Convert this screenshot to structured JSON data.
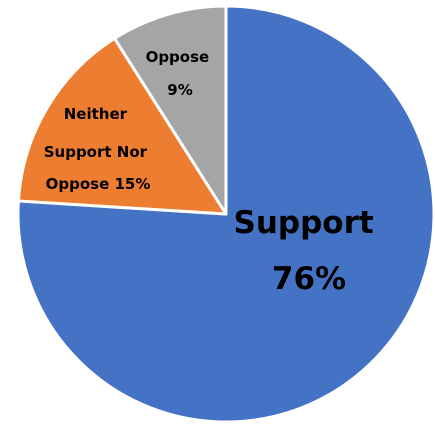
{
  "chart_data": {
    "type": "pie",
    "title": "",
    "start_angle_deg": 0,
    "direction": "clockwise",
    "legend": "none",
    "slices": [
      {
        "name_lines": [
          "Support",
          "76%"
        ],
        "value": 76,
        "color": "#4472C4"
      },
      {
        "name_lines": [
          "Neither",
          "Support Nor",
          "Oppose 15%"
        ],
        "value": 15,
        "color": "#ED7D31"
      },
      {
        "name_lines": [
          "Oppose",
          "9%"
        ],
        "value": 9,
        "color": "#A5A5A5"
      }
    ]
  }
}
